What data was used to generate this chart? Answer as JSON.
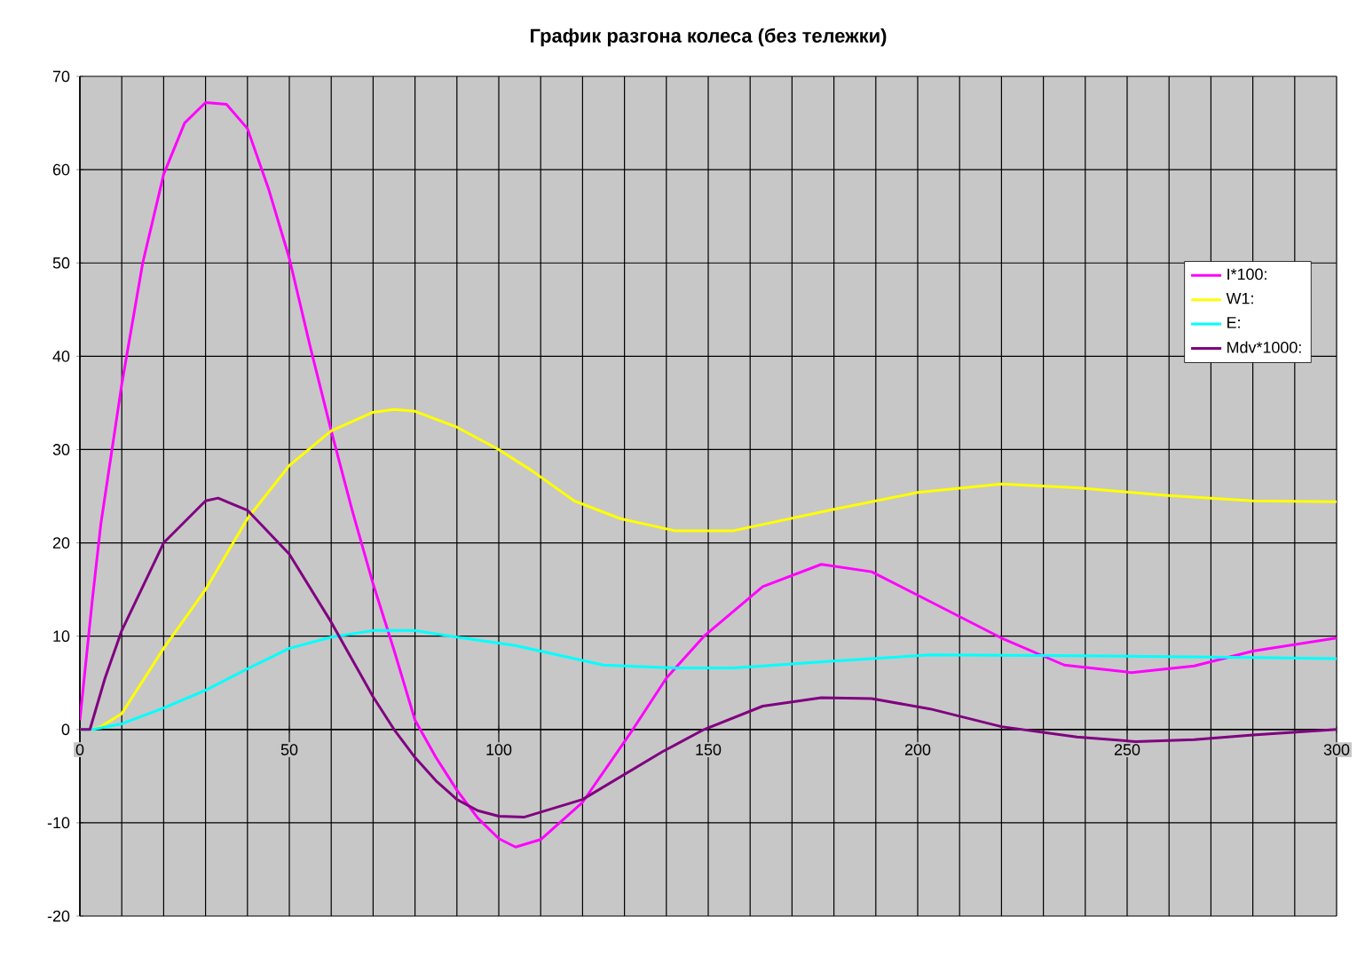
{
  "chart_data": {
    "type": "line",
    "title": "**График разгона колеса (без тележки)**",
    "xlim": [
      0,
      300
    ],
    "ylim": [
      -20,
      70
    ],
    "xticks": [
      0,
      50,
      100,
      150,
      200,
      250,
      300
    ],
    "yticks": [
      -20,
      -10,
      0,
      10,
      20,
      30,
      40,
      50,
      60,
      70
    ],
    "grid": true,
    "legend": "right",
    "marker": "none",
    "line_style": "solid",
    "series": [
      {
        "name": "I*100:",
        "color": "#ff00ff",
        "x": [
          0,
          3,
          5,
          10,
          15,
          20,
          25,
          30,
          35,
          40,
          45,
          50,
          55,
          60,
          65,
          70,
          75,
          80,
          85,
          90,
          95,
          100,
          104,
          110,
          120,
          132,
          140,
          149,
          163,
          177,
          189,
          203,
          220,
          235,
          251,
          266,
          280,
          300
        ],
        "values": [
          1,
          14,
          22,
          37,
          50,
          59.5,
          65,
          67.2,
          67,
          64.4,
          58,
          50.5,
          41,
          32,
          23.5,
          15.6,
          8.5,
          1,
          -3,
          -6.5,
          -9.5,
          -11.7,
          -12.6,
          -11.8,
          -7.8,
          0,
          5.5,
          10,
          15.3,
          17.7,
          16.9,
          13.7,
          9.8,
          6.9,
          6.1,
          6.8,
          8.4,
          9.8
        ]
      },
      {
        "name": "W1:",
        "color": "#ffff00",
        "x": [
          0,
          3,
          5,
          10,
          20,
          30,
          40,
          50,
          60,
          70,
          75,
          80,
          90,
          100,
          108,
          118,
          129,
          142,
          156,
          179,
          200,
          220,
          238,
          259,
          280,
          300
        ],
        "values": [
          0,
          0,
          0.3,
          1.7,
          8.7,
          15,
          22.6,
          28.3,
          32,
          34,
          34.3,
          34.1,
          32.4,
          30,
          27.7,
          24.5,
          22.6,
          21.3,
          21.3,
          23.5,
          25.4,
          26.3,
          25.9,
          25.1,
          24.5,
          24.4
        ]
      },
      {
        "name": "E:",
        "color": "#00ffff",
        "x": [
          0,
          3,
          10,
          20,
          30,
          40,
          50,
          60,
          70,
          80,
          90,
          104,
          125,
          142,
          156,
          179,
          203,
          238,
          280,
          300
        ],
        "values": [
          0,
          0,
          0.6,
          2.3,
          4.2,
          6.5,
          8.7,
          9.9,
          10.6,
          10.6,
          9.9,
          9.0,
          6.9,
          6.6,
          6.6,
          7.3,
          8.0,
          7.9,
          7.7,
          7.6
        ]
      },
      {
        "name": "Mdv*1000:",
        "color": "#800080",
        "x": [
          0,
          2.4,
          6,
          10,
          20,
          30,
          33,
          40,
          50,
          60,
          65,
          70,
          75,
          80,
          85,
          90,
          95,
          100,
          106,
          120,
          139,
          149,
          163,
          177,
          189,
          203,
          220,
          238,
          252,
          266,
          280,
          300
        ],
        "values": [
          0,
          0,
          5.5,
          10.6,
          20,
          24.5,
          24.8,
          23.5,
          18.8,
          11.5,
          7.5,
          3.5,
          0,
          -3,
          -5.5,
          -7.5,
          -8.7,
          -9.3,
          -9.4,
          -7.5,
          -2.4,
          0,
          2.5,
          3.4,
          3.3,
          2.2,
          0.3,
          -0.8,
          -1.3,
          -1.1,
          -0.6,
          0
        ]
      }
    ]
  }
}
